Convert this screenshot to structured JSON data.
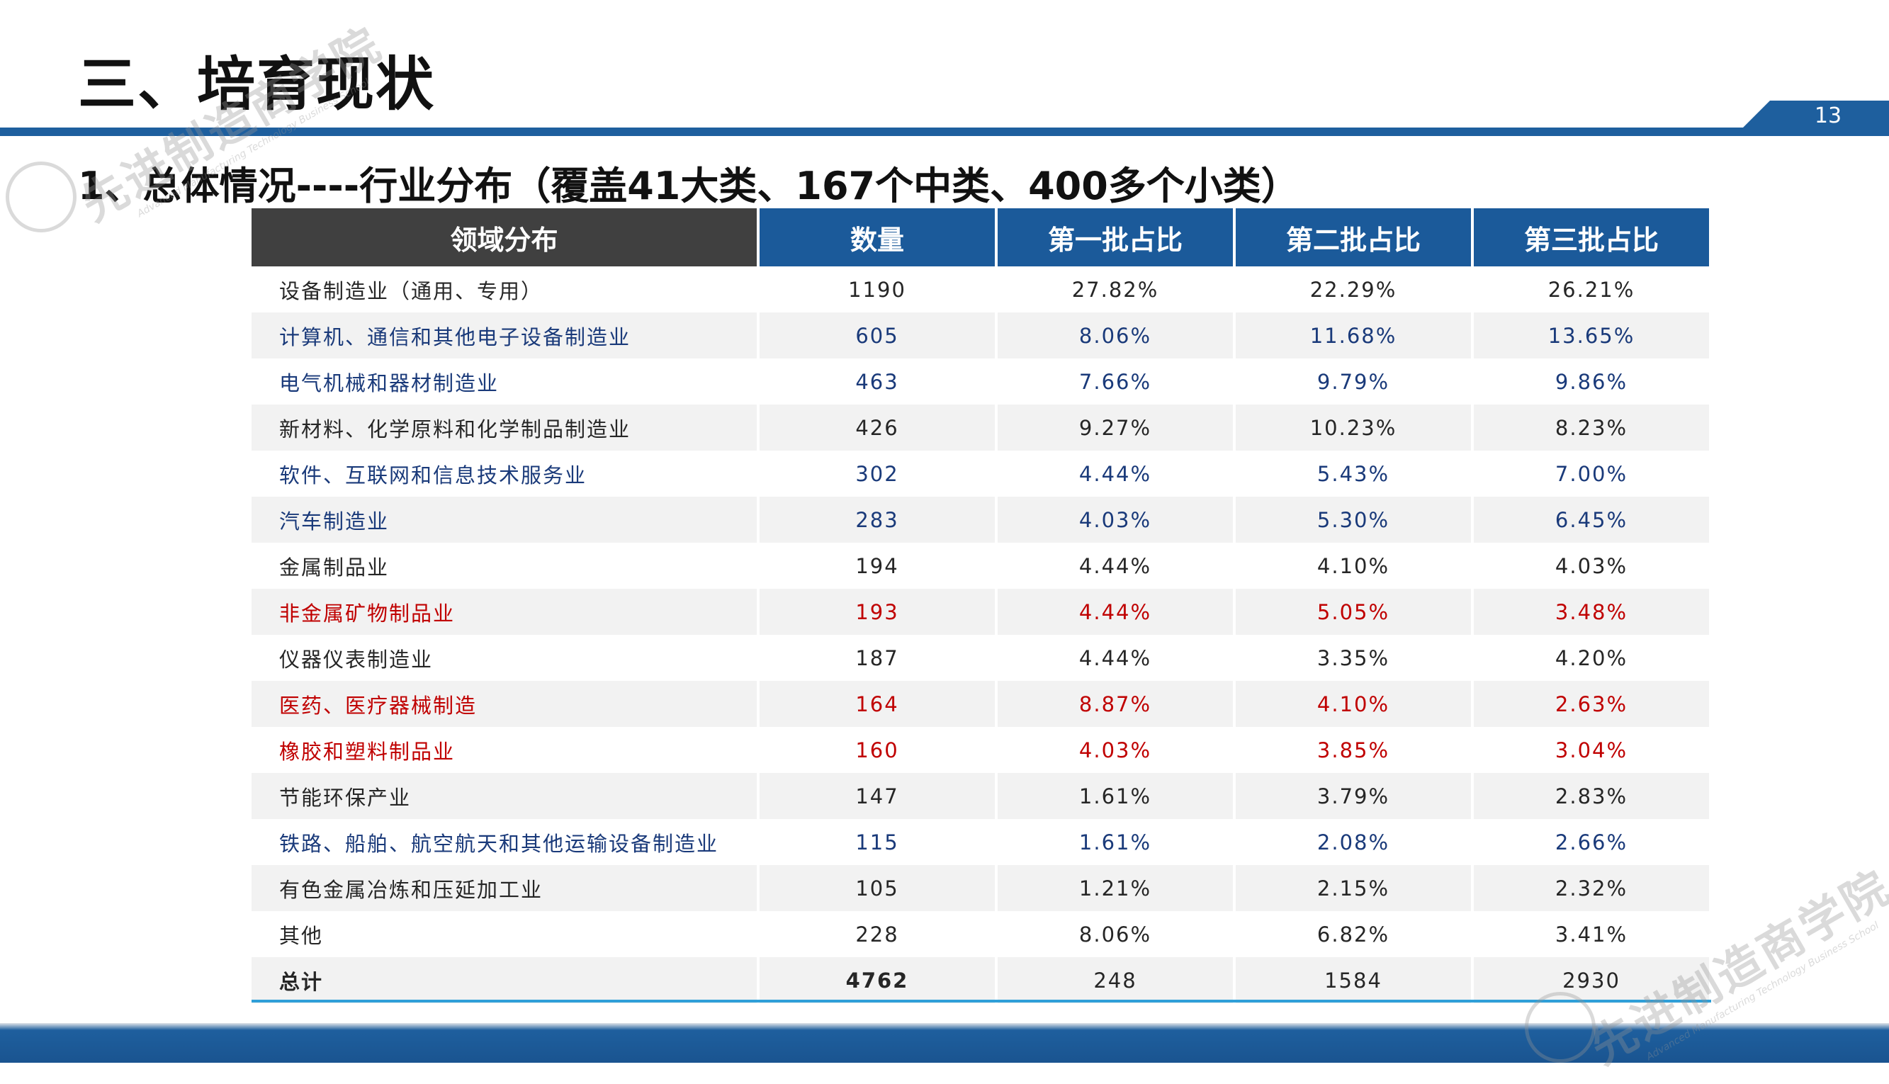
{
  "slide": {
    "title": "三、培育现状",
    "page_number": "13",
    "subtitle": "1、总体情况----行业分布（覆盖41大类、167个中类、400多个小类）"
  },
  "watermark": {
    "name": "先进制造商学院",
    "english": "Advanced Manufacturing Technology Business School"
  },
  "colors": {
    "header_blue": "#1e5f9e",
    "header_dark": "#404040",
    "text_blue": "#1a3a7a",
    "text_red": "#c00000",
    "underline": "#2f9fd8"
  },
  "table": {
    "headers": [
      "领域分布",
      "数量",
      "第一批占比",
      "第二批占比",
      "第三批占比"
    ],
    "rows": [
      {
        "name": "设备制造业（通用、专用）",
        "count": "1190",
        "b1": "27.82%",
        "b2": "22.29%",
        "b3": "26.21%",
        "color": "black"
      },
      {
        "name": "计算机、通信和其他电子设备制造业",
        "count": "605",
        "b1": "8.06%",
        "b2": "11.68%",
        "b3": "13.65%",
        "color": "blue"
      },
      {
        "name": "电气机械和器材制造业",
        "count": "463",
        "b1": "7.66%",
        "b2": "9.79%",
        "b3": "9.86%",
        "color": "blue"
      },
      {
        "name": "新材料、化学原料和化学制品制造业",
        "count": "426",
        "b1": "9.27%",
        "b2": "10.23%",
        "b3": "8.23%",
        "color": "black"
      },
      {
        "name": "软件、互联网和信息技术服务业",
        "count": "302",
        "b1": "4.44%",
        "b2": "5.43%",
        "b3": "7.00%",
        "color": "blue"
      },
      {
        "name": "汽车制造业",
        "count": "283",
        "b1": "4.03%",
        "b2": "5.30%",
        "b3": "6.45%",
        "color": "blue"
      },
      {
        "name": "金属制品业",
        "count": "194",
        "b1": "4.44%",
        "b2": "4.10%",
        "b3": "4.03%",
        "color": "black"
      },
      {
        "name": "非金属矿物制品业",
        "count": "193",
        "b1": "4.44%",
        "b2": "5.05%",
        "b3": "3.48%",
        "color": "red"
      },
      {
        "name": "仪器仪表制造业",
        "count": "187",
        "b1": "4.44%",
        "b2": "3.35%",
        "b3": "4.20%",
        "color": "black"
      },
      {
        "name": "医药、医疗器械制造",
        "count": "164",
        "b1": "8.87%",
        "b2": "4.10%",
        "b3": "2.63%",
        "color": "red"
      },
      {
        "name": "橡胶和塑料制品业",
        "count": "160",
        "b1": "4.03%",
        "b2": "3.85%",
        "b3": "3.04%",
        "color": "red"
      },
      {
        "name": "节能环保产业",
        "count": "147",
        "b1": "1.61%",
        "b2": "3.79%",
        "b3": "2.83%",
        "color": "black"
      },
      {
        "name": "铁路、船舶、航空航天和其他运输设备制造业",
        "count": "115",
        "b1": "1.61%",
        "b2": "2.08%",
        "b3": "2.66%",
        "color": "blue"
      },
      {
        "name": "有色金属冶炼和压延加工业",
        "count": "105",
        "b1": "1.21%",
        "b2": "2.15%",
        "b3": "2.32%",
        "color": "black"
      },
      {
        "name": "其他",
        "count": "228",
        "b1": "8.06%",
        "b2": "6.82%",
        "b3": "3.41%",
        "color": "black"
      }
    ],
    "total": {
      "name": "总计",
      "count": "4762",
      "b1": "248",
      "b2": "1584",
      "b3": "2930"
    }
  }
}
